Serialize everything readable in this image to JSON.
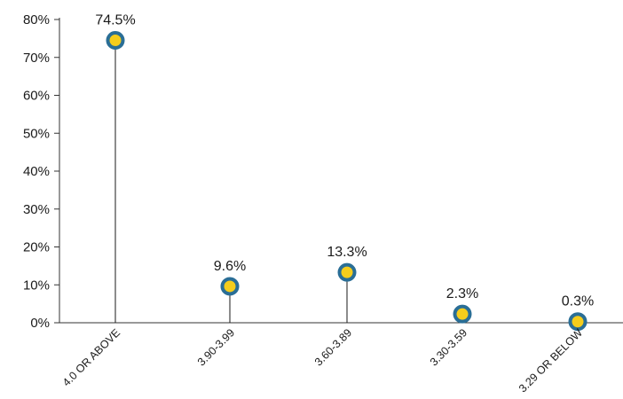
{
  "chart_data": {
    "type": "scatter",
    "categories": [
      "4.0 OR ABOVE",
      "3.90-3.99",
      "3.60-3.89",
      "3.30-3.59",
      "3.29 OR BELOW"
    ],
    "values": [
      74.5,
      9.6,
      13.3,
      2.3,
      0.3
    ],
    "data_labels": [
      "74.5%",
      "9.6%",
      "13.3%",
      "2.3%",
      "0.3%"
    ],
    "title": "",
    "xlabel": "",
    "ylabel": "",
    "ylim": [
      0,
      80
    ],
    "y_ticks": [
      0,
      10,
      20,
      30,
      40,
      50,
      60,
      70,
      80
    ],
    "y_tick_labels": [
      "0%",
      "10%",
      "20%",
      "30%",
      "40%",
      "50%",
      "60%",
      "70%",
      "80%"
    ],
    "grid": false,
    "legend": "none",
    "stems": true,
    "colors": {
      "marker_fill": "#f5cd1c",
      "marker_stroke": "#2a6e96",
      "stem": "#1a1a1a",
      "axis": "#333333"
    }
  }
}
